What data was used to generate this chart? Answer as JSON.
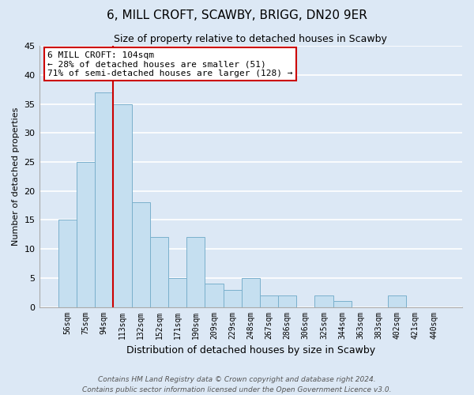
{
  "title": "6, MILL CROFT, SCAWBY, BRIGG, DN20 9ER",
  "subtitle": "Size of property relative to detached houses in Scawby",
  "xlabel": "Distribution of detached houses by size in Scawby",
  "ylabel": "Number of detached properties",
  "bar_labels": [
    "56sqm",
    "75sqm",
    "94sqm",
    "113sqm",
    "132sqm",
    "152sqm",
    "171sqm",
    "190sqm",
    "209sqm",
    "229sqm",
    "248sqm",
    "267sqm",
    "286sqm",
    "306sqm",
    "325sqm",
    "344sqm",
    "363sqm",
    "383sqm",
    "402sqm",
    "421sqm",
    "440sqm"
  ],
  "bar_values": [
    15,
    25,
    37,
    35,
    18,
    12,
    5,
    12,
    4,
    3,
    5,
    2,
    2,
    0,
    2,
    1,
    0,
    0,
    2,
    0,
    0
  ],
  "bar_color": "#c5dff0",
  "bar_edge_color": "#7ab0cc",
  "ylim": [
    0,
    45
  ],
  "yticks": [
    0,
    5,
    10,
    15,
    20,
    25,
    30,
    35,
    40,
    45
  ],
  "vline_x": 2.5,
  "vline_color": "#cc0000",
  "annotation_title": "6 MILL CROFT: 104sqm",
  "annotation_line1": "← 28% of detached houses are smaller (51)",
  "annotation_line2": "71% of semi-detached houses are larger (128) →",
  "annotation_box_facecolor": "#ffffff",
  "annotation_box_edgecolor": "#cc0000",
  "footer_line1": "Contains HM Land Registry data © Crown copyright and database right 2024.",
  "footer_line2": "Contains public sector information licensed under the Open Government Licence v3.0.",
  "bg_color": "#dce8f5",
  "plot_bg_color": "#dce8f5",
  "grid_color": "#ffffff"
}
